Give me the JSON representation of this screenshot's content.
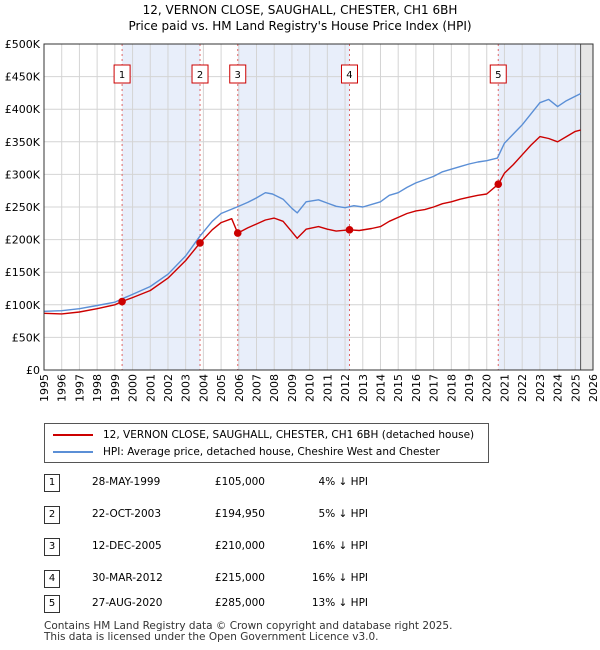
{
  "title_line1": "12, VERNON CLOSE, SAUGHALL, CHESTER, CH1 6BH",
  "title_line2": "Price paid vs. HM Land Registry's House Price Index (HPI)",
  "chart_data": {
    "type": "line",
    "title": "12, VERNON CLOSE, SAUGHALL, CHESTER, CH1 6BH - Price paid vs. HM Land Registry's House Price Index (HPI)",
    "xlim": [
      1995,
      2026
    ],
    "ylim": [
      0,
      500000
    ],
    "y_ticks": [
      0,
      50000,
      100000,
      150000,
      200000,
      250000,
      300000,
      350000,
      400000,
      450000,
      500000
    ],
    "y_tick_labels": [
      "£0",
      "£50K",
      "£100K",
      "£150K",
      "£200K",
      "£250K",
      "£300K",
      "£350K",
      "£400K",
      "£450K",
      "£500K"
    ],
    "x_ticks": [
      1995,
      1996,
      1997,
      1998,
      1999,
      2000,
      2001,
      2002,
      2003,
      2004,
      2005,
      2006,
      2007,
      2008,
      2009,
      2010,
      2011,
      2012,
      2013,
      2014,
      2015,
      2016,
      2017,
      2018,
      2019,
      2020,
      2021,
      2022,
      2023,
      2024,
      2025,
      2026
    ],
    "x_tick_labels": [
      "1995",
      "1996",
      "1997",
      "1998",
      "1999",
      "2000",
      "2001",
      "2002",
      "2003",
      "2004",
      "2005",
      "2006",
      "2007",
      "2008",
      "2009",
      "2010",
      "2011",
      "2012",
      "2013",
      "2014",
      "2015",
      "2016",
      "2017",
      "2018",
      "2019",
      "2020",
      "2021",
      "2022",
      "2023",
      "2024",
      "2025",
      "2026"
    ],
    "grid": true,
    "series": [
      {
        "name": "HPI: Average price, detached house, Cheshire West and Chester",
        "color": "#5b8fd6",
        "x": [
          1995.0,
          1996.0,
          1997.0,
          1998.0,
          1999.0,
          1999.4,
          2000.0,
          2001.0,
          2002.0,
          2003.0,
          2003.8,
          2004.5,
          2005.0,
          2005.9,
          2006.5,
          2007.0,
          2007.5,
          2007.9,
          2008.5,
          2009.0,
          2009.3,
          2009.8,
          2010.5,
          2011.0,
          2011.5,
          2012.0,
          2012.5,
          2013.0,
          2013.5,
          2014.0,
          2014.5,
          2015.0,
          2015.5,
          2016.0,
          2016.5,
          2017.0,
          2017.5,
          2018.0,
          2018.5,
          2019.0,
          2019.5,
          2020.0,
          2020.6,
          2021.0,
          2021.5,
          2022.0,
          2022.5,
          2023.0,
          2023.5,
          2024.0,
          2024.5,
          2025.0,
          2025.3
        ],
        "y": [
          90000,
          91000,
          94000,
          99000,
          104000,
          109000,
          116000,
          128000,
          147000,
          175000,
          205000,
          228000,
          240000,
          250000,
          257000,
          264000,
          272000,
          270000,
          262000,
          248000,
          241000,
          258000,
          261000,
          256000,
          251000,
          249000,
          252000,
          250000,
          254000,
          258000,
          268000,
          272000,
          280000,
          287000,
          292000,
          297000,
          304000,
          308000,
          312000,
          316000,
          319000,
          321000,
          325000,
          348000,
          362000,
          376000,
          393000,
          410000,
          415000,
          404000,
          413000,
          420000,
          424000
        ]
      },
      {
        "name": "12, VERNON CLOSE, SAUGHALL, CHESTER, CH1 6BH (detached house)",
        "color": "#cc0000",
        "x": [
          1995.0,
          1996.0,
          1997.0,
          1998.0,
          1999.0,
          1999.41,
          2000.0,
          2001.0,
          2002.0,
          2003.0,
          2003.81,
          2004.5,
          2005.0,
          2005.6,
          2005.94,
          2006.5,
          2007.0,
          2007.5,
          2008.0,
          2008.5,
          2009.0,
          2009.3,
          2009.8,
          2010.5,
          2011.0,
          2011.5,
          2012.25,
          2012.8,
          2013.5,
          2014.0,
          2014.5,
          2015.0,
          2015.5,
          2016.0,
          2016.5,
          2017.0,
          2017.5,
          2018.0,
          2018.5,
          2019.0,
          2019.5,
          2020.0,
          2020.65,
          2021.0,
          2021.5,
          2022.0,
          2022.5,
          2023.0,
          2023.5,
          2024.0,
          2024.5,
          2025.0,
          2025.3
        ],
        "y": [
          87000,
          86000,
          89000,
          94000,
          100000,
          105000,
          111000,
          122000,
          141000,
          168000,
          194950,
          215000,
          226000,
          232000,
          210000,
          218000,
          224000,
          230000,
          233000,
          228000,
          212000,
          202000,
          216000,
          220000,
          216000,
          213000,
          215000,
          214000,
          217000,
          220000,
          228000,
          234000,
          240000,
          244000,
          246000,
          250000,
          255000,
          258000,
          262000,
          265000,
          268000,
          270000,
          285000,
          302000,
          315000,
          330000,
          345000,
          358000,
          355000,
          350000,
          358000,
          366000,
          368000
        ]
      }
    ],
    "sales": [
      {
        "num": "1",
        "x": 1999.41,
        "price": 105000,
        "date": "28-MAY-1999",
        "price_label": "£105,000",
        "hpi_label": "4% ↓ HPI"
      },
      {
        "num": "2",
        "x": 2003.81,
        "price": 194950,
        "date": "22-OCT-2003",
        "price_label": "£194,950",
        "hpi_label": "5% ↓ HPI"
      },
      {
        "num": "3",
        "x": 2005.94,
        "price": 210000,
        "date": "12-DEC-2005",
        "price_label": "£210,000",
        "hpi_label": "16% ↓ HPI"
      },
      {
        "num": "4",
        "x": 2012.25,
        "price": 215000,
        "date": "30-MAR-2012",
        "price_label": "£215,000",
        "hpi_label": "16% ↓ HPI"
      },
      {
        "num": "5",
        "x": 2020.65,
        "price": 285000,
        "date": "27-AUG-2020",
        "price_label": "£285,000",
        "hpi_label": "13% ↓ HPI"
      }
    ],
    "shaded_periods": [
      [
        1999.41,
        2003.81
      ],
      [
        2005.94,
        2012.25
      ],
      [
        2020.65,
        2025.3
      ]
    ],
    "forecast_start": 2025.3
  },
  "legend": {
    "red_label": "12, VERNON CLOSE, SAUGHALL, CHESTER, CH1 6BH (detached house)",
    "blue_label": "HPI: Average price, detached house, Cheshire West and Chester"
  },
  "footer": {
    "line1": "Contains HM Land Registry data © Crown copyright and database right 2025.",
    "line2": "This data is licensed under the Open Government Licence v3.0."
  }
}
